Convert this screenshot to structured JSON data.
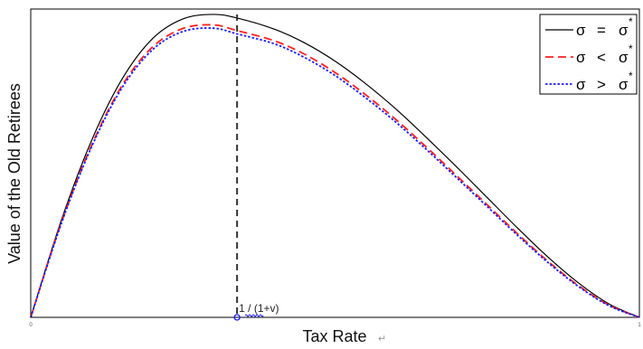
{
  "chart_data": {
    "type": "line",
    "xlabel": "Tax Rate",
    "ylabel": "Value of the Old Retirees",
    "xlim": [
      0,
      1
    ],
    "ylim": [
      0,
      1.03
    ],
    "x_ticks": [
      {
        "value": 0,
        "label": "0"
      },
      {
        "value": 1,
        "label": "1"
      }
    ],
    "annotation": {
      "x": 0.339,
      "label": "1 / (1+v)"
    },
    "grid": false,
    "legend": {
      "position": "top-right",
      "entries": [
        {
          "symbol": "σ",
          "relation": "=",
          "target": "σ",
          "mark": "*"
        },
        {
          "symbol": "σ",
          "relation": "<",
          "target": "σ",
          "mark": "*"
        },
        {
          "symbol": "σ",
          "relation": ">",
          "target": "σ",
          "mark": "*"
        }
      ]
    },
    "series": [
      {
        "color": "#000000",
        "style": "solid",
        "x": [
          0,
          0.05,
          0.1,
          0.15,
          0.2,
          0.25,
          0.3,
          0.339,
          0.4,
          0.45,
          0.5,
          0.55,
          0.6,
          0.65,
          0.7,
          0.75,
          0.8,
          0.85,
          0.9,
          0.95,
          1
        ],
        "y": [
          0,
          0.323,
          0.591,
          0.796,
          0.931,
          0.997,
          1.012,
          1.0,
          0.963,
          0.917,
          0.856,
          0.781,
          0.696,
          0.601,
          0.502,
          0.4,
          0.298,
          0.201,
          0.115,
          0.045,
          0
        ]
      },
      {
        "color": "#ff2020",
        "style": "dashed",
        "x": [
          0,
          0.05,
          0.1,
          0.15,
          0.2,
          0.25,
          0.3,
          0.339,
          0.4,
          0.45,
          0.5,
          0.55,
          0.6,
          0.65,
          0.7,
          0.75,
          0.8,
          0.85,
          0.9,
          0.95,
          1
        ],
        "y": [
          0,
          0.315,
          0.575,
          0.774,
          0.903,
          0.965,
          0.977,
          0.958,
          0.924,
          0.879,
          0.818,
          0.744,
          0.661,
          0.569,
          0.473,
          0.376,
          0.279,
          0.187,
          0.106,
          0.041,
          0
        ]
      },
      {
        "color": "#1a1aff",
        "style": "dotted",
        "x": [
          0,
          0.05,
          0.1,
          0.15,
          0.2,
          0.25,
          0.3,
          0.339,
          0.4,
          0.45,
          0.5,
          0.55,
          0.6,
          0.65,
          0.7,
          0.75,
          0.8,
          0.85,
          0.9,
          0.95,
          1
        ],
        "y": [
          0,
          0.312,
          0.57,
          0.767,
          0.894,
          0.955,
          0.966,
          0.947,
          0.914,
          0.868,
          0.808,
          0.734,
          0.652,
          0.561,
          0.466,
          0.37,
          0.274,
          0.183,
          0.103,
          0.039,
          0
        ]
      }
    ]
  }
}
